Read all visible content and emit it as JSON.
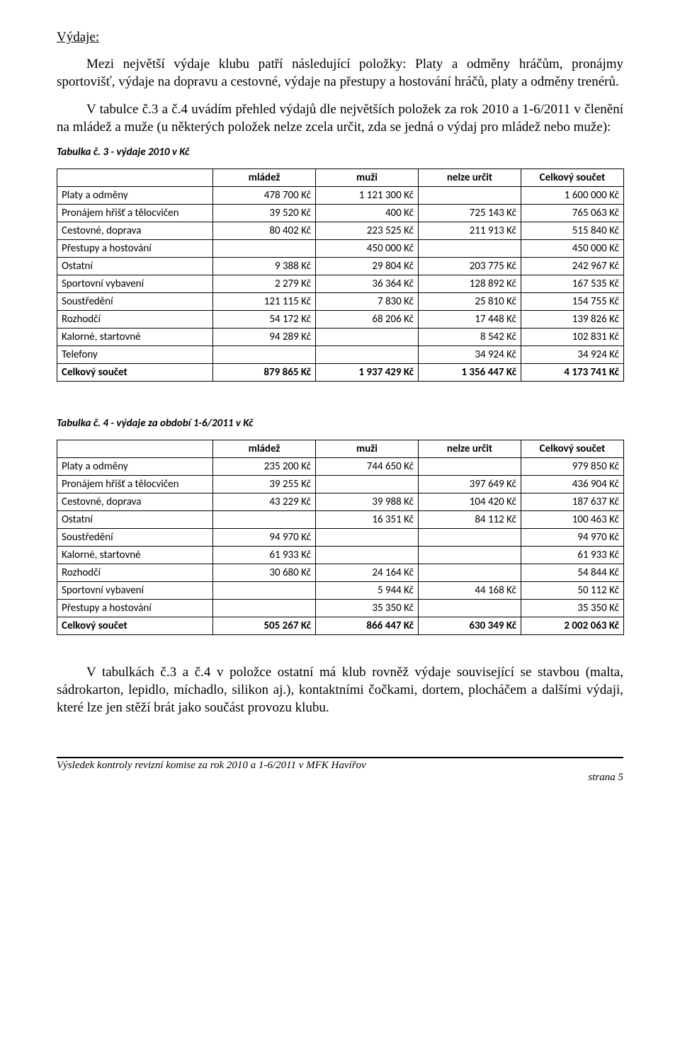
{
  "section_title": "Výdaje:",
  "intro_para": "Mezi největší výdaje klubu patří následující položky: Platy a odměny hráčům, pronájmy sportovišť, výdaje na dopravu a cestovné, výdaje na přestupy a hostování hráčů, platy a odměny trenérů.",
  "intro2_para": "V tabulce č.3 a č.4 uvádím přehled výdajů dle největších položek za rok 2010 a 1-6/2011 v členění na mládež a muže (u některých položek nelze zcela určit, zda se jedná o výdaj pro mládež nebo muže):",
  "table3": {
    "caption": "Tabulka č. 3 - výdaje  2010 v Kč",
    "headers": [
      "",
      "mládež",
      "muži",
      "nelze určit",
      "Celkový součet"
    ],
    "rows": [
      {
        "label": "Platy a odměny",
        "c": [
          "478 700 Kč",
          "1 121 300 Kč",
          "",
          "1 600 000 Kč"
        ]
      },
      {
        "label": "Pronájem hřišť a tělocvičen",
        "c": [
          "39 520 Kč",
          "400 Kč",
          "725 143 Kč",
          "765 063 Kč"
        ]
      },
      {
        "label": "Cestovné, doprava",
        "c": [
          "80 402 Kč",
          "223 525 Kč",
          "211 913 Kč",
          "515 840 Kč"
        ]
      },
      {
        "label": "Přestupy a hostování",
        "c": [
          "",
          "450 000 Kč",
          "",
          "450 000 Kč"
        ]
      },
      {
        "label": "Ostatní",
        "c": [
          "9 388 Kč",
          "29 804 Kč",
          "203 775 Kč",
          "242 967 Kč"
        ]
      },
      {
        "label": "Sportovní vybavení",
        "c": [
          "2 279 Kč",
          "36 364 Kč",
          "128 892 Kč",
          "167 535 Kč"
        ]
      },
      {
        "label": "Soustředění",
        "c": [
          "121 115 Kč",
          "7 830 Kč",
          "25 810 Kč",
          "154 755 Kč"
        ]
      },
      {
        "label": "Rozhodčí",
        "c": [
          "54 172 Kč",
          "68 206 Kč",
          "17 448 Kč",
          "139 826 Kč"
        ]
      },
      {
        "label": "Kalorné, startovné",
        "c": [
          "94 289 Kč",
          "",
          "8 542 Kč",
          "102 831 Kč"
        ]
      },
      {
        "label": "Telefony",
        "c": [
          "",
          "",
          "34 924 Kč",
          "34 924 Kč"
        ]
      }
    ],
    "total": {
      "label": "Celkový součet",
      "c": [
        "879 865 Kč",
        "1 937 429 Kč",
        "1 356 447 Kč",
        "4 173 741 Kč"
      ]
    }
  },
  "table4": {
    "caption": "Tabulka č. 4 - výdaje za období 1-6/2011 v Kč",
    "headers": [
      "",
      "mládež",
      "muži",
      "nelze určit",
      "Celkový součet"
    ],
    "rows": [
      {
        "label": "Platy a odměny",
        "c": [
          "235 200 Kč",
          "744 650 Kč",
          "",
          "979 850 Kč"
        ]
      },
      {
        "label": "Pronájem hřišť a tělocvičen",
        "c": [
          "39 255 Kč",
          "",
          "397 649 Kč",
          "436 904 Kč"
        ]
      },
      {
        "label": "Cestovné, doprava",
        "c": [
          "43 229 Kč",
          "39 988 Kč",
          "104 420 Kč",
          "187 637 Kč"
        ]
      },
      {
        "label": "Ostatní",
        "c": [
          "",
          "16 351 Kč",
          "84 112 Kč",
          "100 463 Kč"
        ]
      },
      {
        "label": "Soustředění",
        "c": [
          "94 970 Kč",
          "",
          "",
          "94 970 Kč"
        ]
      },
      {
        "label": "Kalorné, startovné",
        "c": [
          "61 933 Kč",
          "",
          "",
          "61 933 Kč"
        ]
      },
      {
        "label": "Rozhodčí",
        "c": [
          "30 680 Kč",
          "24 164 Kč",
          "",
          "54 844 Kč"
        ]
      },
      {
        "label": "Sportovní vybavení",
        "c": [
          "",
          "5 944 Kč",
          "44 168 Kč",
          "50 112 Kč"
        ]
      },
      {
        "label": "Přestupy a hostování",
        "c": [
          "",
          "35 350 Kč",
          "",
          "35 350 Kč"
        ]
      }
    ],
    "total": {
      "label": "Celkový součet",
      "c": [
        "505 267 Kč",
        "866 447 Kč",
        "630 349 Kč",
        "2 002 063 Kč"
      ]
    }
  },
  "closing_para": "V tabulkách č.3 a č.4 v položce ostatní má klub rovněž výdaje související se stavbou (malta, sádrokarton, lepidlo, míchadlo, silikon aj.), kontaktními čočkami, dortem, plocháčem a dalšími výdaji, které lze jen stěží brát jako součást provozu klubu.",
  "footer_left": "Výsledek kontroly revizní komise za rok 2010 a 1-6/2011 v MFK Havířov",
  "footer_right": "strana  5"
}
